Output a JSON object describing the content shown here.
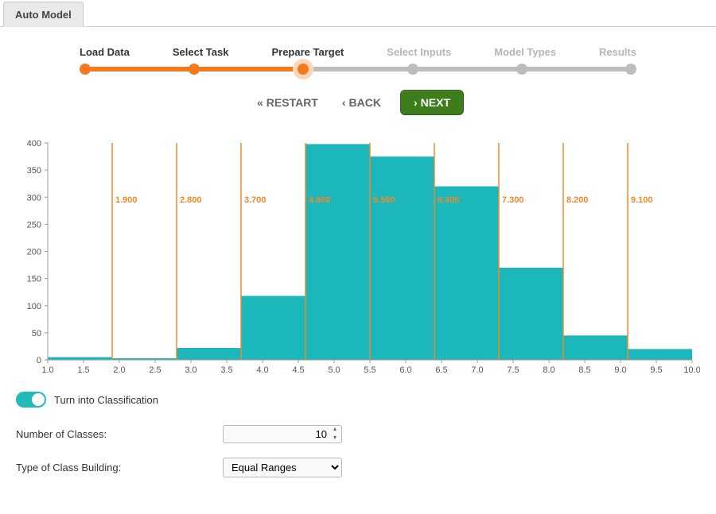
{
  "tab": {
    "label": "Auto Model"
  },
  "stepper": {
    "steps": [
      {
        "label": "Load Data",
        "state": "active"
      },
      {
        "label": "Select Task",
        "state": "active"
      },
      {
        "label": "Prepare Target",
        "state": "current"
      },
      {
        "label": "Select Inputs",
        "state": "inactive"
      },
      {
        "label": "Model Types",
        "state": "inactive"
      },
      {
        "label": "Results",
        "state": "inactive"
      }
    ],
    "colors": {
      "active": "#f47a20",
      "inactive": "#bdbdbd",
      "halo": "#fbd6bb"
    }
  },
  "wiz": {
    "restart": "RESTART",
    "back": "BACK",
    "next": "NEXT",
    "next_bg": "#3d7e1a"
  },
  "chart": {
    "type": "histogram",
    "bar_color": "#1cb7ba",
    "divider_color": "#f08a2a",
    "axis_color": "#999999",
    "text_color": "#555555",
    "background": "#ffffff",
    "y": {
      "min": 0,
      "max": 400,
      "step": 50
    },
    "x": {
      "min": 1.0,
      "max": 10.0,
      "step": 0.5
    },
    "bins": [
      {
        "from": 1.0,
        "to": 1.9,
        "count": 5
      },
      {
        "from": 1.9,
        "to": 2.8,
        "count": 3
      },
      {
        "from": 2.8,
        "to": 3.7,
        "count": 22
      },
      {
        "from": 3.7,
        "to": 4.6,
        "count": 118
      },
      {
        "from": 4.6,
        "to": 5.5,
        "count": 398
      },
      {
        "from": 5.5,
        "to": 6.4,
        "count": 375
      },
      {
        "from": 6.4,
        "to": 7.3,
        "count": 320
      },
      {
        "from": 7.3,
        "to": 8.2,
        "count": 170
      },
      {
        "from": 8.2,
        "to": 9.1,
        "count": 45
      },
      {
        "from": 9.1,
        "to": 10.0,
        "count": 20
      }
    ],
    "divider_labels": [
      "1.900",
      "2.800",
      "3.700",
      "4.600",
      "5.500",
      "6.400",
      "7.300",
      "8.200",
      "9.100"
    ],
    "label_y_value": 290
  },
  "controls": {
    "toggle_label": "Turn into Classification",
    "toggle_on": true,
    "num_classes_label": "Number of Classes:",
    "num_classes_value": "10",
    "type_label": "Type of Class Building:",
    "type_value": "Equal Ranges"
  }
}
